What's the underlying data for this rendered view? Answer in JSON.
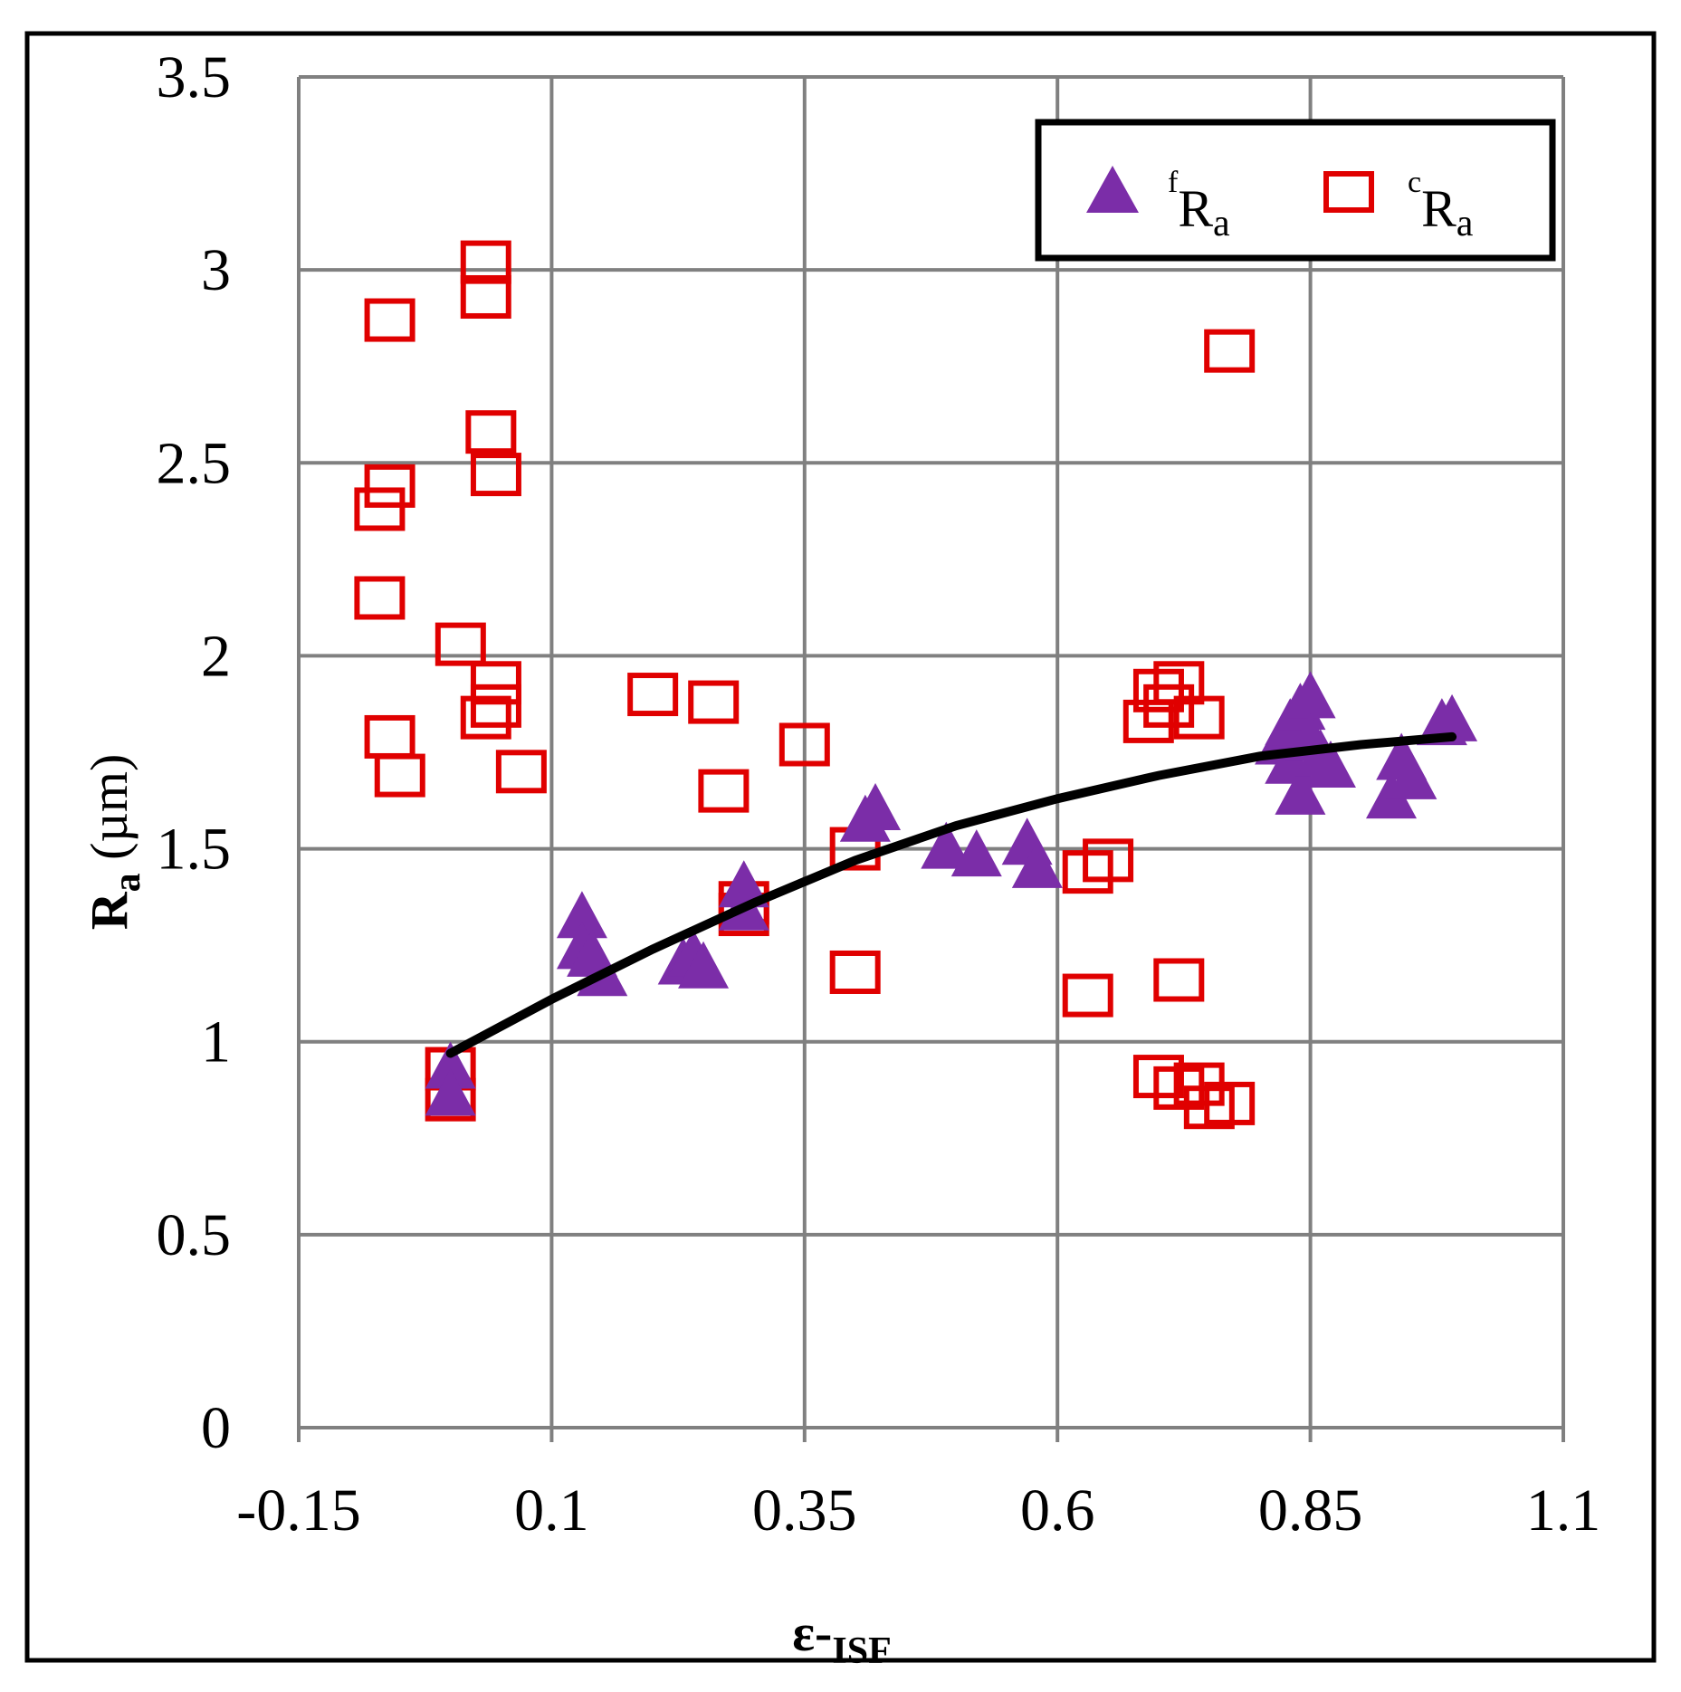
{
  "chart_data": {
    "type": "scatter",
    "xlabel": {
      "main": "ε-",
      "sub": "ISF"
    },
    "ylabel": {
      "main": "R",
      "sub": "a",
      "unit": " (µm)"
    },
    "xlim": [
      -0.15,
      1.1
    ],
    "ylim": [
      0,
      3.5
    ],
    "xticks": [
      -0.15,
      0.1,
      0.35,
      0.6,
      0.85,
      1.1
    ],
    "xtick_labels": [
      "-0.15",
      "0.1",
      "0.35",
      "0.6",
      "0.85",
      "1.1"
    ],
    "yticks": [
      0,
      0.5,
      1,
      1.5,
      2,
      2.5,
      3,
      3.5
    ],
    "ytick_labels": [
      "0",
      "0.5",
      "1",
      "1.5",
      "2",
      "2.5",
      "3",
      "3.5"
    ],
    "grid": true,
    "legend_position": "top-right",
    "series": [
      {
        "key": "fRa",
        "name": {
          "pre": "f",
          "main": "R",
          "sub": "a"
        },
        "marker": "triangle",
        "color": "#7B2DA8",
        "points": [
          [
            0.0,
            0.93
          ],
          [
            0.0,
            0.86
          ],
          [
            0.13,
            1.32
          ],
          [
            0.13,
            1.24
          ],
          [
            0.14,
            1.22
          ],
          [
            0.15,
            1.17
          ],
          [
            0.23,
            1.2
          ],
          [
            0.24,
            1.22
          ],
          [
            0.25,
            1.19
          ],
          [
            0.29,
            1.4
          ],
          [
            0.29,
            1.34
          ],
          [
            0.41,
            1.57
          ],
          [
            0.42,
            1.6
          ],
          [
            0.49,
            1.5
          ],
          [
            0.52,
            1.48
          ],
          [
            0.57,
            1.51
          ],
          [
            0.58,
            1.45
          ],
          [
            0.82,
            1.77
          ],
          [
            0.83,
            1.72
          ],
          [
            0.83,
            1.82
          ],
          [
            0.84,
            1.86
          ],
          [
            0.84,
            1.64
          ],
          [
            0.85,
            1.89
          ],
          [
            0.85,
            1.78
          ],
          [
            0.86,
            1.74
          ],
          [
            0.87,
            1.71
          ],
          [
            0.93,
            1.63
          ],
          [
            0.94,
            1.73
          ],
          [
            0.95,
            1.68
          ],
          [
            0.98,
            1.82
          ],
          [
            0.99,
            1.83
          ]
        ]
      },
      {
        "key": "cRa",
        "name": {
          "pre": "c",
          "main": "R",
          "sub": "a"
        },
        "marker": "square-open",
        "color": "#E00000",
        "points": [
          [
            -0.06,
            2.87
          ],
          [
            -0.06,
            2.44
          ],
          [
            -0.07,
            2.38
          ],
          [
            -0.07,
            2.15
          ],
          [
            -0.06,
            1.79
          ],
          [
            -0.05,
            1.69
          ],
          [
            0.0,
            0.93
          ],
          [
            0.0,
            0.85
          ],
          [
            0.01,
            2.03
          ],
          [
            0.035,
            3.02
          ],
          [
            0.035,
            2.93
          ],
          [
            0.04,
            2.58
          ],
          [
            0.045,
            2.47
          ],
          [
            0.045,
            1.93
          ],
          [
            0.045,
            1.87
          ],
          [
            0.035,
            1.84
          ],
          [
            0.07,
            1.7
          ],
          [
            0.2,
            1.9
          ],
          [
            0.26,
            1.88
          ],
          [
            0.27,
            1.65
          ],
          [
            0.29,
            1.36
          ],
          [
            0.29,
            1.33
          ],
          [
            0.35,
            1.77
          ],
          [
            0.4,
            1.5
          ],
          [
            0.4,
            1.18
          ],
          [
            0.63,
            1.44
          ],
          [
            0.65,
            1.47
          ],
          [
            0.63,
            1.12
          ],
          [
            0.69,
            1.83
          ],
          [
            0.7,
            1.91
          ],
          [
            0.72,
            1.93
          ],
          [
            0.71,
            1.87
          ],
          [
            0.74,
            1.84
          ],
          [
            0.72,
            1.16
          ],
          [
            0.7,
            0.91
          ],
          [
            0.72,
            0.88
          ],
          [
            0.74,
            0.89
          ],
          [
            0.75,
            0.83
          ],
          [
            0.77,
            0.84
          ],
          [
            0.77,
            2.79
          ]
        ]
      },
      {
        "key": "trend",
        "marker": "none",
        "color": "#000000",
        "line": [
          [
            0.0,
            0.97
          ],
          [
            0.1,
            1.11
          ],
          [
            0.2,
            1.24
          ],
          [
            0.3,
            1.36
          ],
          [
            0.4,
            1.47
          ],
          [
            0.5,
            1.56
          ],
          [
            0.6,
            1.63
          ],
          [
            0.7,
            1.69
          ],
          [
            0.8,
            1.74
          ],
          [
            0.9,
            1.77
          ],
          [
            0.99,
            1.79
          ]
        ]
      }
    ]
  }
}
